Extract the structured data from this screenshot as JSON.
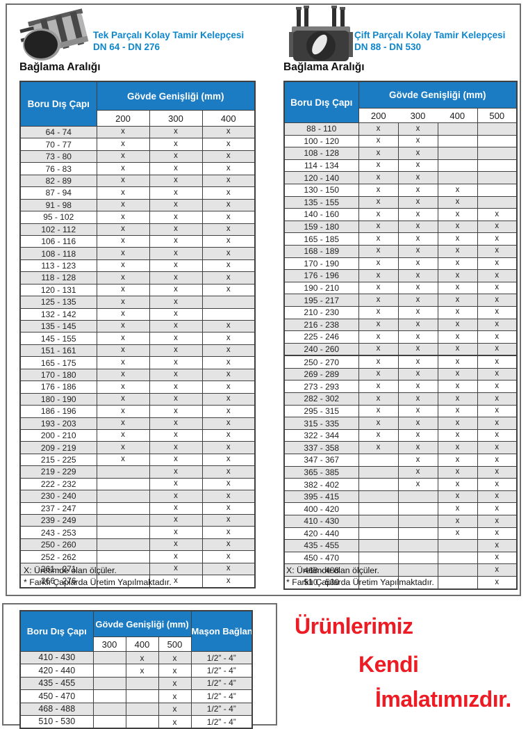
{
  "colors": {
    "header_blue": "#1B7CC4",
    "title_blue": "#0E86CC",
    "row_gray": "#E4E4E4",
    "slogan_red": "#ED1C24"
  },
  "left_panel": {
    "photo_icon": "single-piece-clamp-photo",
    "title_line1": "Tek Parçalı Kolay Tamir Kelepçesi",
    "title_line2": "DN 64 - DN 276",
    "section_label": "Bağlama Aralığı",
    "footnote1": "X: Üretimde olan ölçüler.",
    "footnote2": "* Farklı Çaplarda Üretim Yapılmaktadır.",
    "table": {
      "row_header": "Boru Dış Çapı",
      "group_header": "Gövde Genişliği (mm)",
      "cols": [
        "200",
        "300",
        "400"
      ],
      "rows": [
        {
          "range": "64 - 74",
          "marks": [
            "x",
            "x",
            "x"
          ]
        },
        {
          "range": "70 - 77",
          "marks": [
            "x",
            "x",
            "x"
          ]
        },
        {
          "range": "73 - 80",
          "marks": [
            "x",
            "x",
            "x"
          ]
        },
        {
          "range": "76 - 83",
          "marks": [
            "x",
            "x",
            "x"
          ]
        },
        {
          "range": "82 - 89",
          "marks": [
            "x",
            "x",
            "x"
          ]
        },
        {
          "range": "87 - 94",
          "marks": [
            "x",
            "x",
            "x"
          ]
        },
        {
          "range": "91 - 98",
          "marks": [
            "x",
            "x",
            "x"
          ]
        },
        {
          "range": "95 - 102",
          "marks": [
            "x",
            "x",
            "x"
          ]
        },
        {
          "range": "102 - 112",
          "marks": [
            "x",
            "x",
            "x"
          ]
        },
        {
          "range": "106 - 116",
          "marks": [
            "x",
            "x",
            "x"
          ]
        },
        {
          "range": "108 - 118",
          "marks": [
            "x",
            "x",
            "x"
          ]
        },
        {
          "range": "113 - 123",
          "marks": [
            "x",
            "x",
            "x"
          ]
        },
        {
          "range": "118 - 128",
          "marks": [
            "x",
            "x",
            "x"
          ]
        },
        {
          "range": "120 - 131",
          "marks": [
            "x",
            "x",
            "x"
          ]
        },
        {
          "range": "125 - 135",
          "marks": [
            "x",
            "x",
            ""
          ]
        },
        {
          "range": "132 - 142",
          "marks": [
            "x",
            "x",
            ""
          ]
        },
        {
          "range": "135 - 145",
          "marks": [
            "x",
            "x",
            "x"
          ]
        },
        {
          "range": "145 - 155",
          "marks": [
            "x",
            "x",
            "x"
          ]
        },
        {
          "range": "151 - 161",
          "marks": [
            "x",
            "x",
            "x"
          ]
        },
        {
          "range": "165 - 175",
          "marks": [
            "x",
            "x",
            "x"
          ]
        },
        {
          "range": "170 - 180",
          "marks": [
            "x",
            "x",
            "x"
          ]
        },
        {
          "range": "176 - 186",
          "marks": [
            "x",
            "x",
            "x"
          ]
        },
        {
          "range": "180 - 190",
          "marks": [
            "x",
            "x",
            "x"
          ]
        },
        {
          "range": "186 - 196",
          "marks": [
            "x",
            "x",
            "x"
          ]
        },
        {
          "range": "193 - 203",
          "marks": [
            "x",
            "x",
            "x"
          ]
        },
        {
          "range": "200 - 210",
          "marks": [
            "x",
            "x",
            "x"
          ]
        },
        {
          "range": "209 - 219",
          "marks": [
            "x",
            "x",
            "x"
          ]
        },
        {
          "range": "215 - 225",
          "marks": [
            "x",
            "x",
            "x"
          ]
        },
        {
          "range": "219 - 229",
          "marks": [
            "",
            "x",
            "x"
          ]
        },
        {
          "range": "222 - 232",
          "marks": [
            "",
            "x",
            "x"
          ]
        },
        {
          "range": "230 - 240",
          "marks": [
            "",
            "x",
            "x"
          ]
        },
        {
          "range": "237 - 247",
          "marks": [
            "",
            "x",
            "x"
          ]
        },
        {
          "range": "239 - 249",
          "marks": [
            "",
            "x",
            "x"
          ]
        },
        {
          "range": "243 - 253",
          "marks": [
            "",
            "x",
            "x"
          ]
        },
        {
          "range": "250 - 260",
          "marks": [
            "",
            "x",
            "x"
          ]
        },
        {
          "range": "252 - 262",
          "marks": [
            "",
            "x",
            "x"
          ]
        },
        {
          "range": "261 - 271",
          "marks": [
            "",
            "x",
            "x"
          ]
        },
        {
          "range": "266 - 276",
          "marks": [
            "",
            "x",
            "x"
          ]
        }
      ]
    }
  },
  "right_panel": {
    "photo_icon": "double-piece-clamp-photo",
    "title_line1": "Çift Parçalı Kolay Tamir Kelepçesi",
    "title_line2": "DN 88 - DN 530",
    "section_label": "Bağlama Aralığı",
    "footnote1": "X: Üretimde olan ölçüler.",
    "footnote2": "* Farklı Çaplarda Üretim Yapılmaktadır.",
    "table": {
      "row_header": "Boru Dış Çapı",
      "group_header": "Gövde Genişliği (mm)",
      "cols": [
        "200",
        "300",
        "400",
        "500"
      ],
      "rows": [
        {
          "range": "88 - 110",
          "marks": [
            "x",
            "x",
            "",
            ""
          ]
        },
        {
          "range": "100 - 120",
          "marks": [
            "x",
            "x",
            "",
            ""
          ]
        },
        {
          "range": "108 - 128",
          "marks": [
            "x",
            "x",
            "",
            ""
          ]
        },
        {
          "range": "114 - 134",
          "marks": [
            "x",
            "x",
            "",
            ""
          ]
        },
        {
          "range": "120 - 140",
          "marks": [
            "x",
            "x",
            "",
            ""
          ]
        },
        {
          "range": "130 - 150",
          "marks": [
            "x",
            "x",
            "x",
            ""
          ]
        },
        {
          "range": "135 - 155",
          "marks": [
            "x",
            "x",
            "x",
            ""
          ]
        },
        {
          "range": "140 - 160",
          "marks": [
            "x",
            "x",
            "x",
            "x"
          ]
        },
        {
          "range": "159 - 180",
          "marks": [
            "x",
            "x",
            "x",
            "x"
          ]
        },
        {
          "range": "165 - 185",
          "marks": [
            "x",
            "x",
            "x",
            "x"
          ]
        },
        {
          "range": "168 - 189",
          "marks": [
            "x",
            "x",
            "x",
            "x"
          ]
        },
        {
          "range": "170 - 190",
          "marks": [
            "x",
            "x",
            "x",
            "x"
          ]
        },
        {
          "range": "176 - 196",
          "marks": [
            "x",
            "x",
            "x",
            "x"
          ]
        },
        {
          "range": "190 - 210",
          "marks": [
            "x",
            "x",
            "x",
            "x"
          ]
        },
        {
          "range": "195 - 217",
          "marks": [
            "x",
            "x",
            "x",
            "x"
          ]
        },
        {
          "range": "210 - 230",
          "marks": [
            "x",
            "x",
            "x",
            "x"
          ]
        },
        {
          "range": "216 - 238",
          "marks": [
            "x",
            "x",
            "x",
            "x"
          ]
        },
        {
          "range": "225 - 246",
          "marks": [
            "x",
            "x",
            "x",
            "x"
          ]
        },
        {
          "range": "240 - 260",
          "marks": [
            "x",
            "x",
            "x",
            "x"
          ],
          "thick": true
        },
        {
          "range": "250 - 270",
          "marks": [
            "x",
            "x",
            "x",
            "x"
          ]
        },
        {
          "range": "269 - 289",
          "marks": [
            "x",
            "x",
            "x",
            "x"
          ]
        },
        {
          "range": "273 - 293",
          "marks": [
            "x",
            "x",
            "x",
            "x"
          ]
        },
        {
          "range": "282 - 302",
          "marks": [
            "x",
            "x",
            "x",
            "x"
          ]
        },
        {
          "range": "295 - 315",
          "marks": [
            "x",
            "x",
            "x",
            "x"
          ]
        },
        {
          "range": "315 - 335",
          "marks": [
            "x",
            "x",
            "x",
            "x"
          ]
        },
        {
          "range": "322 - 344",
          "marks": [
            "x",
            "x",
            "x",
            "x"
          ]
        },
        {
          "range": "337 - 358",
          "marks": [
            "x",
            "x",
            "x",
            "x"
          ]
        },
        {
          "range": "347 - 367",
          "marks": [
            "",
            "x",
            "x",
            "x"
          ]
        },
        {
          "range": "365 - 385",
          "marks": [
            "",
            "x",
            "x",
            "x"
          ]
        },
        {
          "range": "382 - 402",
          "marks": [
            "",
            "x",
            "x",
            "x"
          ]
        },
        {
          "range": "395 - 415",
          "marks": [
            "",
            "",
            "x",
            "x"
          ]
        },
        {
          "range": "400 - 420",
          "marks": [
            "",
            "",
            "x",
            "x"
          ]
        },
        {
          "range": "410 - 430",
          "marks": [
            "",
            "",
            "x",
            "x"
          ]
        },
        {
          "range": "420 - 440",
          "marks": [
            "",
            "",
            "x",
            "x"
          ]
        },
        {
          "range": "435 - 455",
          "marks": [
            "",
            "",
            "",
            "x"
          ]
        },
        {
          "range": "450 - 470",
          "marks": [
            "",
            "",
            "",
            "x"
          ]
        },
        {
          "range": "468 - 488",
          "marks": [
            "",
            "",
            "",
            "x"
          ]
        },
        {
          "range": "510 - 530",
          "marks": [
            "",
            "",
            "",
            "x"
          ]
        }
      ]
    }
  },
  "bottom_panel": {
    "table": {
      "row_header": "Boru Dış Çapı",
      "group_header": "Gövde Genişliği (mm)",
      "mason_header": "Maşon Bağlantı",
      "cols": [
        "300",
        "400",
        "500"
      ],
      "rows": [
        {
          "range": "410 - 430",
          "marks": [
            "",
            "x",
            "x"
          ],
          "mason": "1/2” - 4”"
        },
        {
          "range": "420 - 440",
          "marks": [
            "",
            "x",
            "x"
          ],
          "mason": "1/2” - 4”"
        },
        {
          "range": "435 - 455",
          "marks": [
            "",
            "",
            "x"
          ],
          "mason": "1/2” - 4”"
        },
        {
          "range": "450 - 470",
          "marks": [
            "",
            "",
            "x"
          ],
          "mason": "1/2” - 4”"
        },
        {
          "range": "468 - 488",
          "marks": [
            "",
            "",
            "x"
          ],
          "mason": "1/2” - 4”"
        },
        {
          "range": "510 - 530",
          "marks": [
            "",
            "",
            "x"
          ],
          "mason": "1/2” - 4”"
        }
      ]
    },
    "slogan_line1": "Ürünlerimiz",
    "slogan_line2": "Kendi",
    "slogan_line3": "İmalatımızdır."
  }
}
